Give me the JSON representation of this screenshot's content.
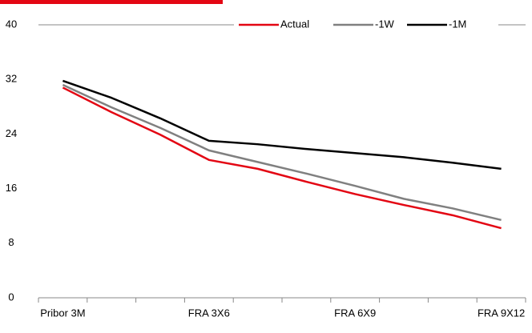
{
  "chart_data": {
    "type": "line",
    "categories": [
      "Pribor 3M",
      null,
      null,
      "FRA 3X6",
      null,
      null,
      "FRA 6X9",
      null,
      null,
      "FRA 9X12"
    ],
    "series": [
      {
        "name": "Actual",
        "color": "#e30613",
        "values": [
          30.8,
          27.2,
          23.9,
          20.2,
          18.9,
          17.0,
          15.2,
          13.6,
          12.1,
          10.2
        ]
      },
      {
        "name": "-1W",
        "color": "#808080",
        "values": [
          31.2,
          27.9,
          24.9,
          21.6,
          19.9,
          18.2,
          16.4,
          14.5,
          13.1,
          11.4
        ]
      },
      {
        "name": "-1M",
        "color": "#000000",
        "values": [
          31.8,
          29.3,
          26.3,
          23.0,
          22.5,
          21.8,
          21.2,
          20.6,
          19.8,
          18.9
        ]
      }
    ],
    "ylim": [
      0,
      40
    ],
    "yticks": [
      0,
      8,
      16,
      24,
      32,
      40
    ],
    "grid": false,
    "legend": "top-right"
  }
}
